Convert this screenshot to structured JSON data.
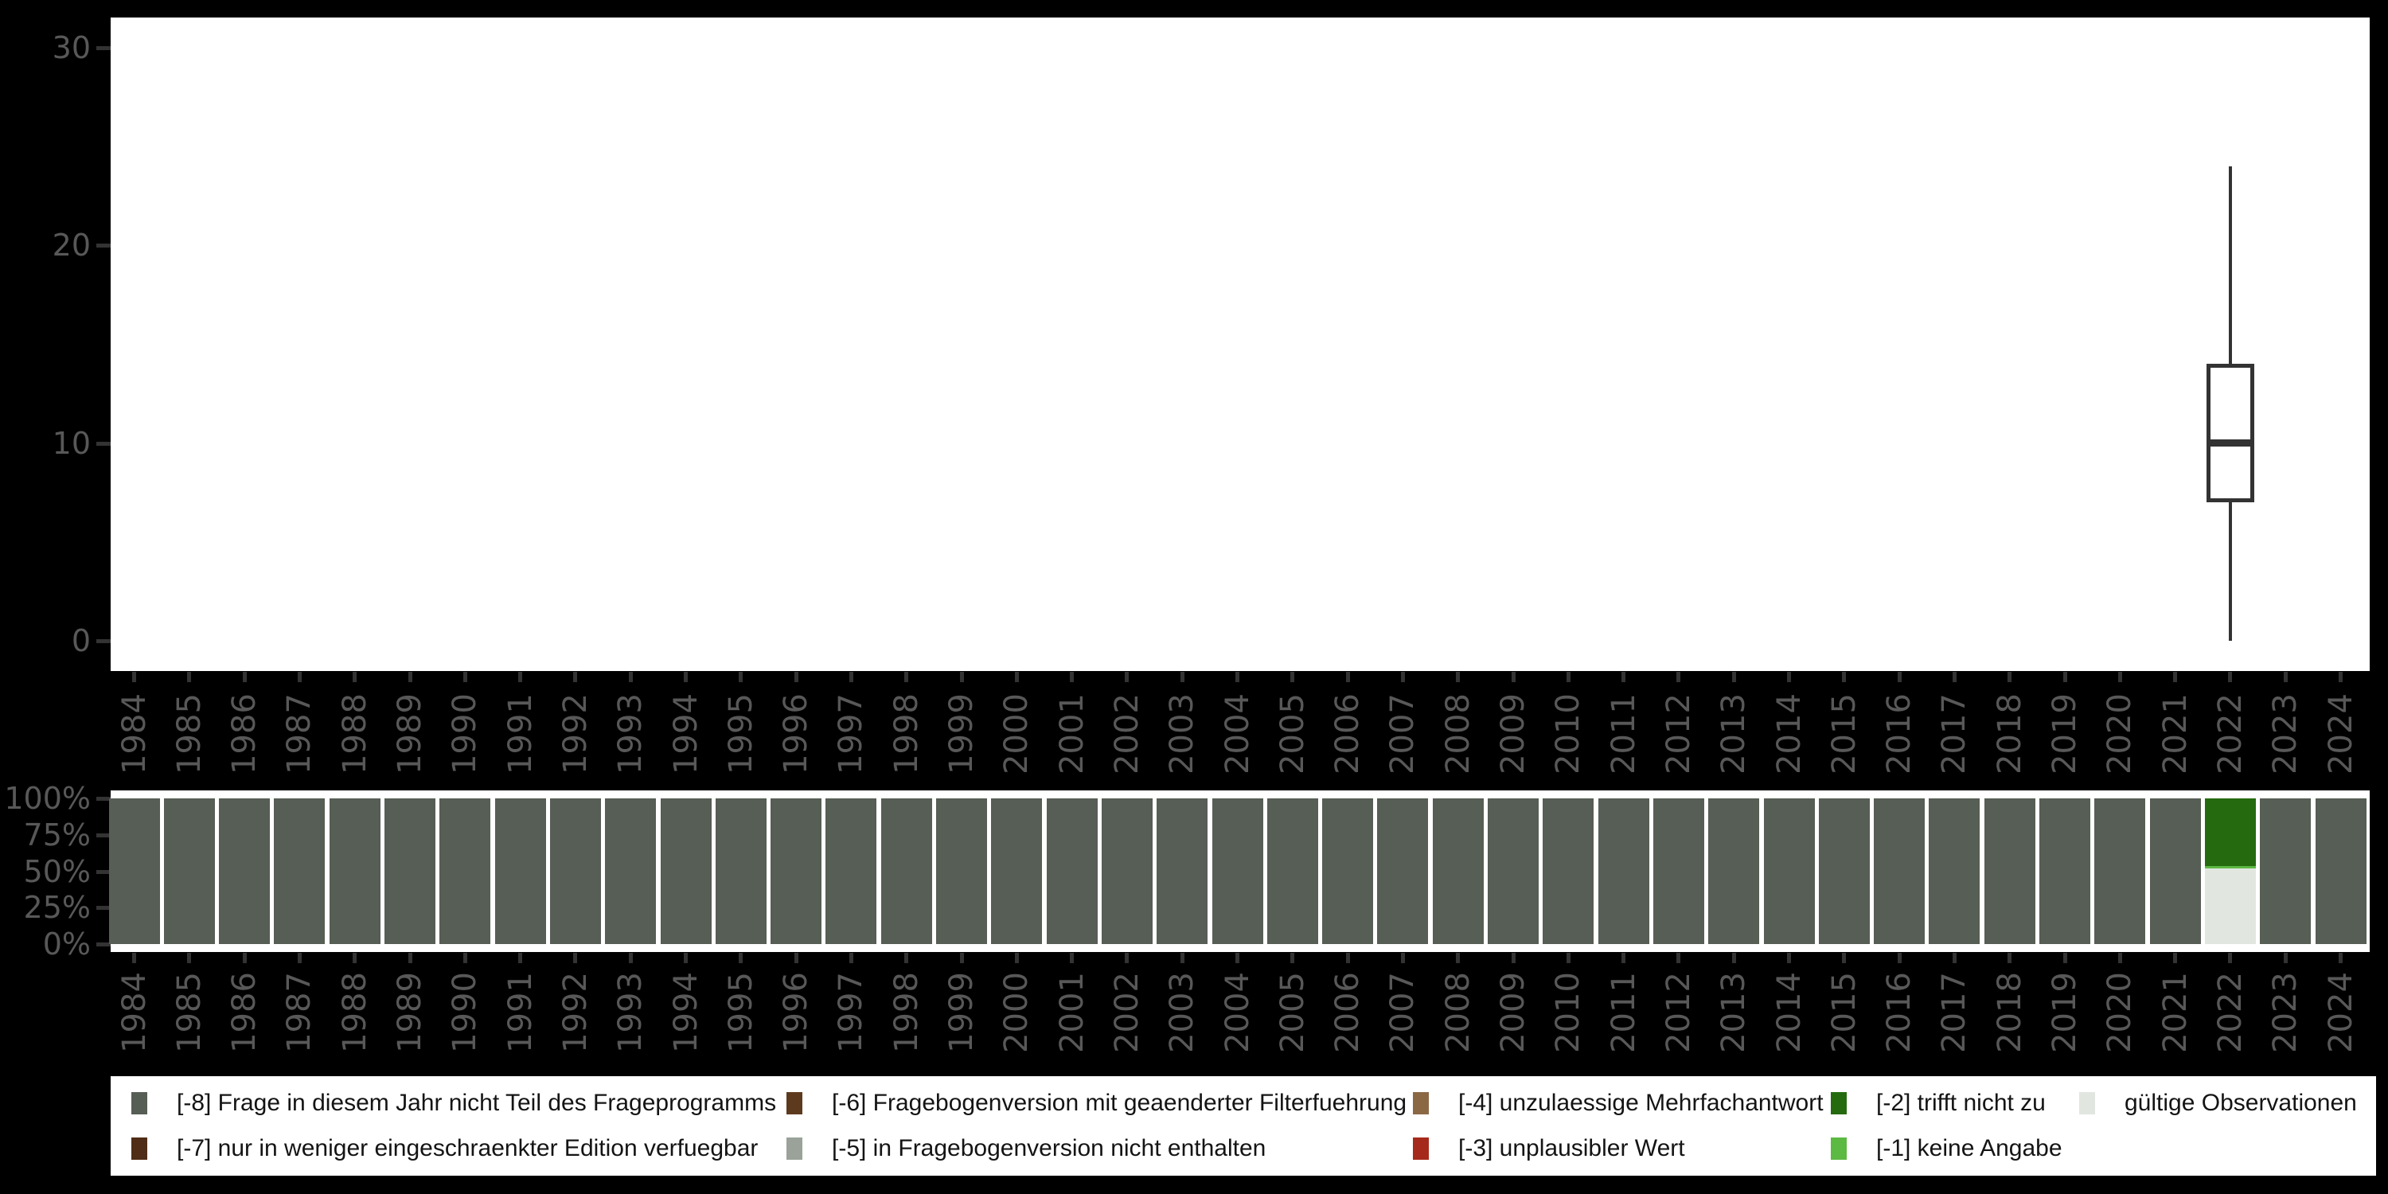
{
  "figure": {
    "background_color": "#000000",
    "plot_background_color": "#ffffff",
    "axis_text_color": "#585858",
    "line_color": "#333333"
  },
  "colors": {
    "-8": "#575e55",
    "-7": "#4f2d16",
    "-6": "#5d3a1e",
    "-5": "#9aa299",
    "-4": "#8b6844",
    "-3": "#a62a1b",
    "-2": "#256a0f",
    "-1": "#5cb942",
    "valid": "#e2e6e0"
  },
  "years": [
    "1984",
    "1985",
    "1986",
    "1987",
    "1988",
    "1989",
    "1990",
    "1991",
    "1992",
    "1993",
    "1994",
    "1995",
    "1996",
    "1997",
    "1998",
    "1999",
    "2000",
    "2001",
    "2002",
    "2003",
    "2004",
    "2005",
    "2006",
    "2007",
    "2008",
    "2009",
    "2010",
    "2011",
    "2012",
    "2013",
    "2014",
    "2015",
    "2016",
    "2017",
    "2018",
    "2019",
    "2020",
    "2021",
    "2022",
    "2023",
    "2024"
  ],
  "chart_data": [
    {
      "type": "boxplot",
      "title": "",
      "xlabel": "",
      "ylabel": "",
      "x_categories": [
        "1984",
        "1985",
        "1986",
        "1987",
        "1988",
        "1989",
        "1990",
        "1991",
        "1992",
        "1993",
        "1994",
        "1995",
        "1996",
        "1997",
        "1998",
        "1999",
        "2000",
        "2001",
        "2002",
        "2003",
        "2004",
        "2005",
        "2006",
        "2007",
        "2008",
        "2009",
        "2010",
        "2011",
        "2012",
        "2013",
        "2014",
        "2015",
        "2016",
        "2017",
        "2018",
        "2019",
        "2020",
        "2021",
        "2022",
        "2023",
        "2024"
      ],
      "y_ticks": [
        0,
        10,
        20,
        30
      ],
      "ylim": [
        -1.5,
        31.5
      ],
      "grid": false,
      "series": [
        {
          "category": "2022",
          "min": 0,
          "q1": 7,
          "median": 10,
          "q3": 14,
          "max": 24
        }
      ]
    },
    {
      "type": "bar",
      "subtype": "stacked-percent",
      "title": "",
      "xlabel": "",
      "ylabel": "",
      "x_categories": [
        "1984",
        "1985",
        "1986",
        "1987",
        "1988",
        "1989",
        "1990",
        "1991",
        "1992",
        "1993",
        "1994",
        "1995",
        "1996",
        "1997",
        "1998",
        "1999",
        "2000",
        "2001",
        "2002",
        "2003",
        "2004",
        "2005",
        "2006",
        "2007",
        "2008",
        "2009",
        "2010",
        "2011",
        "2012",
        "2013",
        "2014",
        "2015",
        "2016",
        "2017",
        "2018",
        "2019",
        "2020",
        "2021",
        "2022",
        "2023",
        "2024"
      ],
      "y_ticks": [
        100,
        75,
        50,
        25,
        0
      ],
      "y_tick_labels": [
        "100%",
        "75%",
        "50%",
        "25%",
        "0%"
      ],
      "ylim": [
        0,
        100
      ],
      "grid": false,
      "default_stack": [
        {
          "code": "-8",
          "pct": 100
        }
      ],
      "stacks": {
        "2022": [
          {
            "code": "-2",
            "pct": 46.5
          },
          {
            "code": "-1",
            "pct": 1.5
          },
          {
            "code": "valid",
            "pct": 52
          }
        ]
      }
    }
  ],
  "legend": {
    "items": [
      {
        "code": "-8",
        "label": "[-8] Frage in diesem Jahr nicht Teil des Frageprogramms",
        "row": 0,
        "col": 0
      },
      {
        "code": "-7",
        "label": "[-7] nur in weniger eingeschraenkter Edition verfuegbar",
        "row": 1,
        "col": 0
      },
      {
        "code": "-6",
        "label": "[-6] Fragebogenversion mit geaenderter Filterfuehrung",
        "row": 0,
        "col": 1
      },
      {
        "code": "-5",
        "label": "[-5] in Fragebogenversion nicht enthalten",
        "row": 1,
        "col": 1
      },
      {
        "code": "-4",
        "label": "[-4] unzulaessige Mehrfachantwort",
        "row": 0,
        "col": 2
      },
      {
        "code": "-3",
        "label": "[-3] unplausibler Wert",
        "row": 1,
        "col": 2
      },
      {
        "code": "-2",
        "label": "[-2] trifft nicht zu",
        "row": 0,
        "col": 3
      },
      {
        "code": "-1",
        "label": "[-1] keine Angabe",
        "row": 1,
        "col": 3
      },
      {
        "code": "valid",
        "label": "gültige Observationen",
        "row": 0,
        "col": 4
      }
    ]
  }
}
